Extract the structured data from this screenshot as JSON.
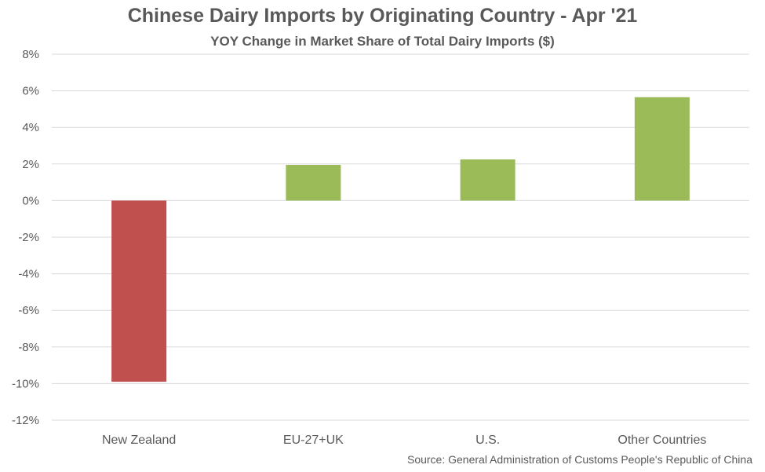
{
  "chart_data": {
    "type": "bar",
    "title": "Chinese Dairy Imports by Originating Country - Apr '21",
    "subtitle": "YOY Change in Market Share of Total Dairy Imports ($)",
    "source": "Source: General Administration of Customs People's Republic of China",
    "categories": [
      "New Zealand",
      "EU-27+UK",
      "U.S.",
      "Other Countries"
    ],
    "values": [
      -9.9,
      1.95,
      2.25,
      5.65
    ],
    "ylim": [
      -12,
      8
    ],
    "yticks": [
      8,
      6,
      4,
      2,
      0,
      -2,
      -4,
      -6,
      -8,
      -10,
      -12
    ],
    "y_tick_format": "percent",
    "grid": true,
    "legend": "none",
    "colors": {
      "positive": "#9BBB59",
      "negative": "#C0504D",
      "grid": "#D9D9D9",
      "text": "#595959"
    }
  }
}
